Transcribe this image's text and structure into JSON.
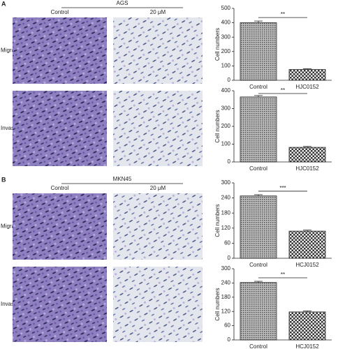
{
  "panels": [
    {
      "label": "A",
      "cell_line": "AGS",
      "columns": [
        "Control",
        "20 μM"
      ],
      "rows": [
        "Migration",
        "Invasion"
      ]
    },
    {
      "label": "B",
      "cell_line": "MKN45",
      "columns": [
        "Control",
        "20 μM"
      ],
      "rows": [
        "Migration",
        "Invasion"
      ]
    }
  ],
  "chart_data": [
    {
      "type": "bar",
      "ylabel": "Cell numbers",
      "categories": [
        "Control",
        "HJC0152"
      ],
      "values": [
        400,
        75
      ],
      "errors": [
        12,
        5
      ],
      "ylim": [
        0,
        500
      ],
      "yticks": [
        0,
        100,
        200,
        300,
        400,
        500
      ],
      "significance": "**"
    },
    {
      "type": "bar",
      "ylabel": "Cell numbers",
      "categories": [
        "Control",
        "HJC0152"
      ],
      "values": [
        365,
        82
      ],
      "errors": [
        8,
        5
      ],
      "ylim": [
        0,
        400
      ],
      "yticks": [
        0,
        100,
        200,
        300,
        400
      ],
      "significance": "**"
    },
    {
      "type": "bar",
      "ylabel": "Cell numbers",
      "categories": [
        "Control",
        "HCJ0152"
      ],
      "values": [
        248,
        108
      ],
      "errors": [
        5,
        4
      ],
      "ylim": [
        0,
        300
      ],
      "yticks": [
        0,
        60,
        120,
        180,
        240,
        300
      ],
      "significance": "***"
    },
    {
      "type": "bar",
      "ylabel": "Cell numbers",
      "categories": [
        "Control",
        "HCJ0152"
      ],
      "values": [
        242,
        118
      ],
      "errors": [
        5,
        4
      ],
      "ylim": [
        0,
        300
      ],
      "yticks": [
        0,
        60,
        120,
        180,
        240,
        300
      ],
      "significance": "**"
    }
  ]
}
